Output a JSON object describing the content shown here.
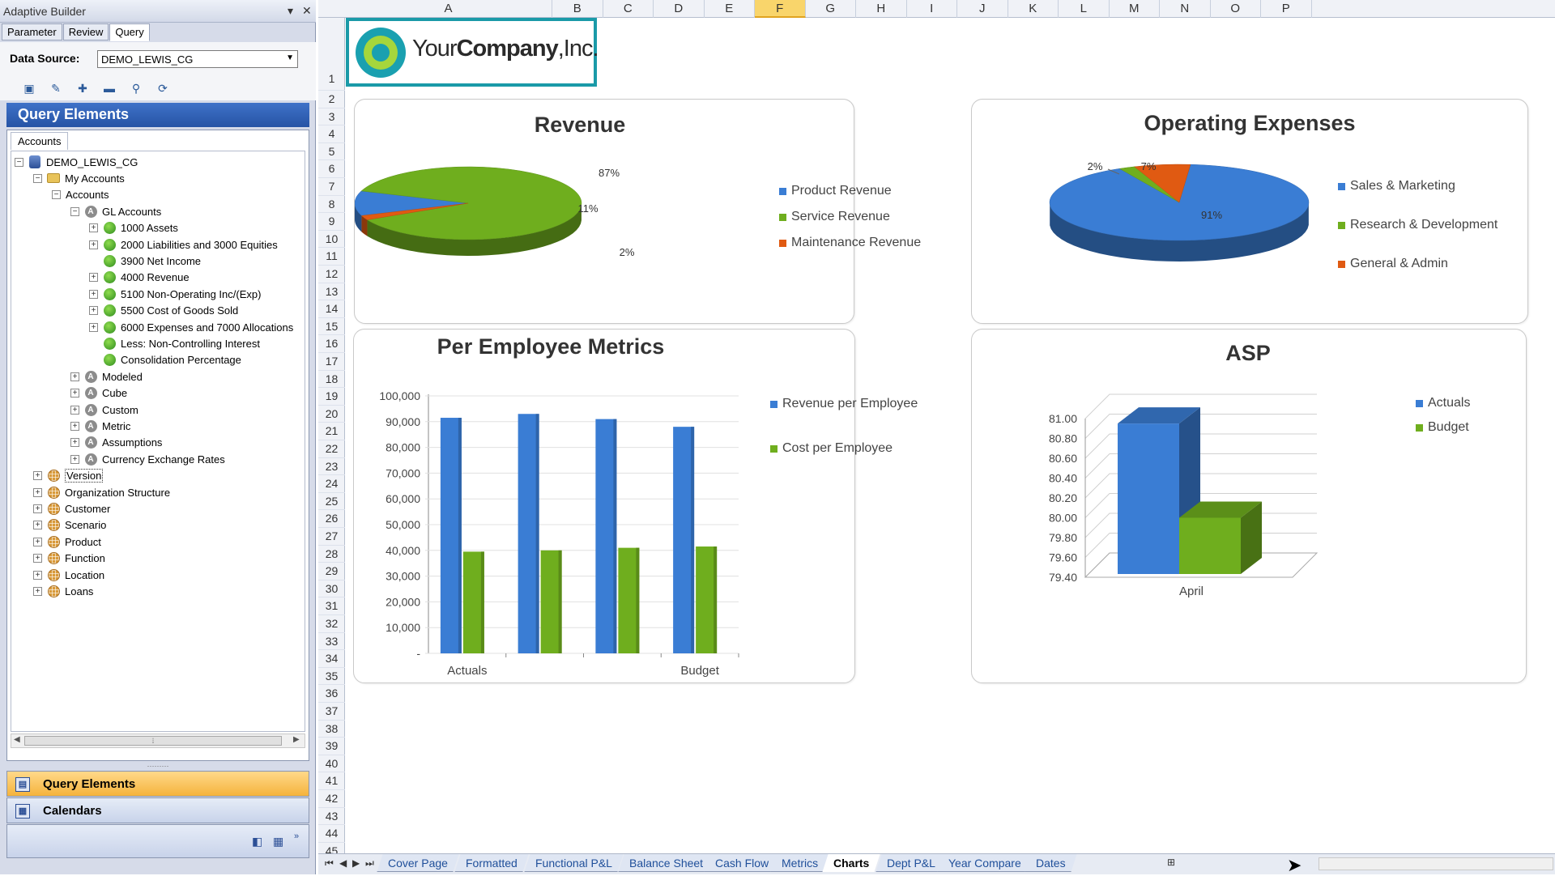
{
  "pane": {
    "title": "Adaptive Builder",
    "tabs": [
      "Parameter",
      "Review",
      "Query"
    ],
    "active_tab": "Query",
    "data_source_label": "Data Source:",
    "data_source_value": "DEMO_LEWIS_CG",
    "query_elements_header": "Query Elements",
    "accounts_tab": "Accounts",
    "nav_query_elements": "Query Elements",
    "nav_calendars": "Calendars"
  },
  "tree": [
    {
      "label": "DEMO_LEWIS_CG",
      "level": 0,
      "exp": "-",
      "icon": "db"
    },
    {
      "label": "My Accounts",
      "level": 1,
      "exp": "-",
      "icon": "folder"
    },
    {
      "label": "Accounts",
      "level": 2,
      "exp": "-",
      "icon": "none"
    },
    {
      "label": "GL Accounts",
      "level": 3,
      "exp": "-",
      "icon": "A"
    },
    {
      "label": "1000 Assets",
      "level": 4,
      "exp": "+",
      "icon": "green"
    },
    {
      "label": "2000 Liabilities and 3000 Equities",
      "level": 4,
      "exp": "+",
      "icon": "green"
    },
    {
      "label": "3900 Net Income",
      "level": 4,
      "exp": "",
      "icon": "green"
    },
    {
      "label": "4000 Revenue",
      "level": 4,
      "exp": "+",
      "icon": "green"
    },
    {
      "label": "5100 Non-Operating Inc/(Exp)",
      "level": 4,
      "exp": "+",
      "icon": "green"
    },
    {
      "label": "5500 Cost of Goods Sold",
      "level": 4,
      "exp": "+",
      "icon": "green"
    },
    {
      "label": "6000 Expenses and 7000 Allocations",
      "level": 4,
      "exp": "+",
      "icon": "green"
    },
    {
      "label": "Less: Non-Controlling Interest",
      "level": 4,
      "exp": "",
      "icon": "green"
    },
    {
      "label": "Consolidation Percentage",
      "level": 4,
      "exp": "",
      "icon": "green"
    },
    {
      "label": "Modeled",
      "level": 3,
      "exp": "+",
      "icon": "A"
    },
    {
      "label": "Cube",
      "level": 3,
      "exp": "+",
      "icon": "A"
    },
    {
      "label": "Custom",
      "level": 3,
      "exp": "+",
      "icon": "A"
    },
    {
      "label": "Metric",
      "level": 3,
      "exp": "+",
      "icon": "A"
    },
    {
      "label": "Assumptions",
      "level": 3,
      "exp": "+",
      "icon": "A"
    },
    {
      "label": "Currency Exchange Rates",
      "level": 3,
      "exp": "+",
      "icon": "A"
    },
    {
      "label": "Version",
      "level": 1,
      "exp": "+",
      "icon": "grid",
      "selected": true
    },
    {
      "label": "Organization Structure",
      "level": 1,
      "exp": "+",
      "icon": "grid"
    },
    {
      "label": "Customer",
      "level": 1,
      "exp": "+",
      "icon": "grid"
    },
    {
      "label": "Scenario",
      "level": 1,
      "exp": "+",
      "icon": "grid"
    },
    {
      "label": "Product",
      "level": 1,
      "exp": "+",
      "icon": "grid"
    },
    {
      "label": "Function",
      "level": 1,
      "exp": "+",
      "icon": "grid"
    },
    {
      "label": "Location",
      "level": 1,
      "exp": "+",
      "icon": "grid"
    },
    {
      "label": "Loans",
      "level": 1,
      "exp": "+",
      "icon": "grid"
    }
  ],
  "sheet": {
    "columns": [
      "A",
      "B",
      "C",
      "D",
      "E",
      "F",
      "G",
      "H",
      "I",
      "J",
      "K",
      "L",
      "M",
      "N",
      "O",
      "P"
    ],
    "active_column": "F",
    "rows": [
      "1",
      "2",
      "3",
      "4",
      "5",
      "6",
      "7",
      "8",
      "9",
      "10",
      "11",
      "12",
      "13",
      "14",
      "15",
      "16",
      "17",
      "18",
      "19",
      "20",
      "21",
      "22",
      "23",
      "24",
      "25",
      "26",
      "27",
      "28",
      "29",
      "30",
      "31",
      "32",
      "33",
      "34",
      "35",
      "36",
      "37",
      "38",
      "39",
      "40",
      "41",
      "42",
      "43",
      "44",
      "45"
    ],
    "logo": {
      "part1": "Your",
      "part2": "Company",
      "part3": ",Inc."
    },
    "tabs": [
      "Cover Page",
      "Formatted",
      "Functional P&L",
      "Balance Sheet",
      "Cash Flow",
      "Metrics",
      "Charts",
      "Dept P&L",
      "Year Compare",
      "Dates"
    ],
    "active_tab": "Charts"
  },
  "colors": {
    "blue": "#3a7dd4",
    "green": "#6fae1e",
    "orange": "#e05a12"
  },
  "chart_data": [
    {
      "type": "pie",
      "title": "Revenue",
      "categories": [
        "Product Revenue",
        "Service Revenue",
        "Maintenance Revenue"
      ],
      "values": [
        11,
        87,
        2
      ],
      "labels": [
        "11%",
        "87%",
        "2%"
      ]
    },
    {
      "type": "pie",
      "title": "Operating Expenses",
      "categories": [
        "Sales & Marketing",
        "Research & Development",
        "General & Admin"
      ],
      "values": [
        91,
        2,
        7
      ],
      "labels": [
        "91%",
        "2%",
        "7%"
      ]
    },
    {
      "type": "bar",
      "title": "Per Employee Metrics",
      "categories": [
        "Actuals",
        "",
        "",
        "Budget"
      ],
      "series": [
        {
          "name": "Revenue per Employee",
          "values": [
            91500,
            93000,
            91000,
            88000
          ]
        },
        {
          "name": "Cost per Employee",
          "values": [
            39500,
            40000,
            41000,
            41500
          ]
        }
      ],
      "ylim": [
        0,
        100000
      ],
      "yticks": [
        "-",
        "10,000",
        "20,000",
        "30,000",
        "40,000",
        "50,000",
        "60,000",
        "70,000",
        "80,000",
        "90,000",
        "100,000"
      ]
    },
    {
      "type": "bar",
      "title": "ASP",
      "categories": [
        "April"
      ],
      "series": [
        {
          "name": "Actuals",
          "values": [
            80.95
          ]
        },
        {
          "name": "Budget",
          "values": [
            80.0
          ]
        }
      ],
      "ylim": [
        79.4,
        81.0
      ],
      "yticks": [
        "79.40",
        "79.60",
        "79.80",
        "80.00",
        "80.20",
        "80.40",
        "80.60",
        "80.80",
        "81.00"
      ]
    }
  ]
}
